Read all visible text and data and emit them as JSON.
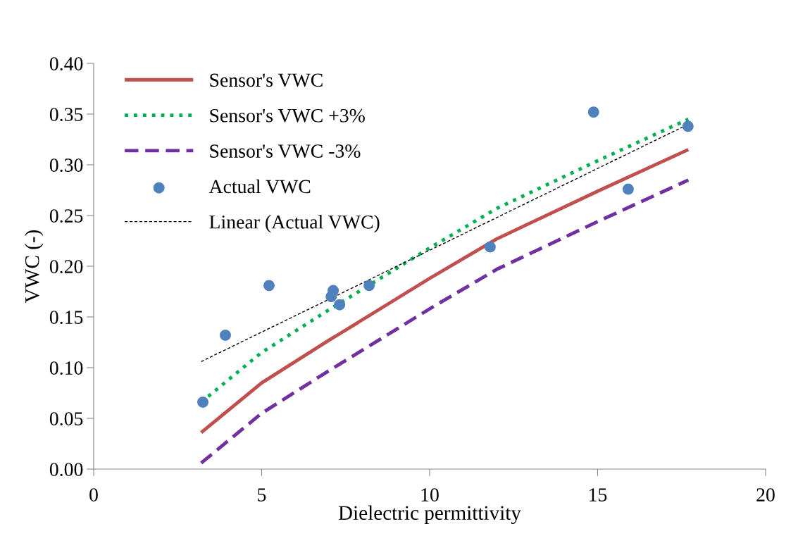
{
  "chart_data": {
    "type": "line",
    "xlabel": "Dielectric permittivity",
    "ylabel": "VWC (-)",
    "xlim": [
      0,
      20
    ],
    "xticks": [
      0,
      5,
      10,
      15,
      20
    ],
    "ylim": [
      0,
      0.4
    ],
    "yticks": [
      {
        "value": 0,
        "label": "0.00"
      },
      {
        "value": 0.05,
        "label": "0.05"
      },
      {
        "value": 0.1,
        "label": "0.10"
      },
      {
        "value": 0.15,
        "label": "0.15"
      },
      {
        "value": 0.2,
        "label": "0.20"
      },
      {
        "value": 0.25,
        "label": "0.25"
      },
      {
        "value": 0.3,
        "label": "0.30"
      },
      {
        "value": 0.35,
        "label": "0.35"
      },
      {
        "value": 0.4,
        "label": "0.40"
      }
    ],
    "grid": false,
    "legend": "top left",
    "series": [
      {
        "name": "Sensor's VWC",
        "line_style": "solid",
        "color": "#c0504d",
        "x": [
          3.2,
          5,
          7,
          7.3,
          10,
          12,
          15,
          17.7
        ],
        "values": [
          0.036,
          0.085,
          0.127,
          0.133,
          0.188,
          0.227,
          0.274,
          0.315
        ]
      },
      {
        "name": "Sensor's VWC +3%",
        "line_style": "dotted",
        "color": "#00b050",
        "x": [
          3.2,
          5,
          7,
          7.3,
          10,
          12,
          15,
          17.7
        ],
        "values": [
          0.066,
          0.115,
          0.157,
          0.163,
          0.218,
          0.257,
          0.304,
          0.345
        ]
      },
      {
        "name": "Sensor's VWC -3%",
        "line_style": "dashed",
        "color": "#7030a0",
        "x": [
          3.2,
          5,
          7,
          7.3,
          10,
          12,
          15,
          17.7
        ],
        "values": [
          0.006,
          0.055,
          0.097,
          0.103,
          0.158,
          0.197,
          0.244,
          0.285
        ]
      },
      {
        "name": "Actual VWC",
        "type": "scatter",
        "marker": "circle",
        "color": "#4f81bd",
        "x": [
          3.25,
          3.92,
          5.22,
          7.13,
          7.07,
          7.32,
          8.2,
          11.8,
          14.88,
          15.91,
          17.69
        ],
        "values": [
          0.066,
          0.132,
          0.181,
          0.176,
          0.17,
          0.162,
          0.181,
          0.219,
          0.352,
          0.276,
          0.338
        ]
      },
      {
        "name": "Linear (Actual VWC)",
        "line_style": "dashed",
        "color": "#000000",
        "x": [
          3.2,
          17.7
        ],
        "values": [
          0.106,
          0.34
        ]
      }
    ]
  }
}
